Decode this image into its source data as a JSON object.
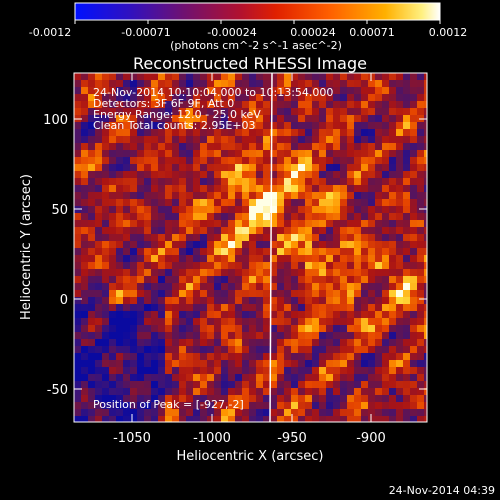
{
  "colorbar": {
    "tick_labels": [
      "-0.0012",
      "-0.00071",
      "-0.00024",
      "0.00024",
      "0.00071",
      "0.0012"
    ],
    "unit_label": "(photons cm^-2 s^-1 asec^-2)",
    "range": [
      -0.0012,
      0.0012
    ],
    "colormap": [
      "#0000ff",
      "#400080",
      "#800040",
      "#c00000",
      "#ff4000",
      "#ff9000",
      "#ffd000",
      "#ffffff"
    ]
  },
  "plot": {
    "title": "Reconstructed RHESSI Image",
    "xlabel": "Heliocentric X (arcsec)",
    "ylabel": "Heliocentric Y (arcsec)",
    "x_ticks": [
      "-1050",
      "-1000",
      "-950",
      "-900"
    ],
    "y_ticks": [
      "100",
      "50",
      "0",
      "-50"
    ],
    "xlim": [
      -1080,
      -885
    ],
    "ylim": [
      -68,
      125
    ],
    "annotations": [
      "24-Nov-2014 10:10:04.000 to 10:13:54.000",
      "Detectors: 3F 6F 9F, Att 0",
      "Energy Range: 12.0 - 25.0 keV",
      "Clean    Total counts: 2.95E+03"
    ],
    "peak_label": "Position of Peak = [-927,-2]",
    "limb_x": -970
  },
  "footer": {
    "timestamp": "24-Nov-2014 04:39"
  }
}
